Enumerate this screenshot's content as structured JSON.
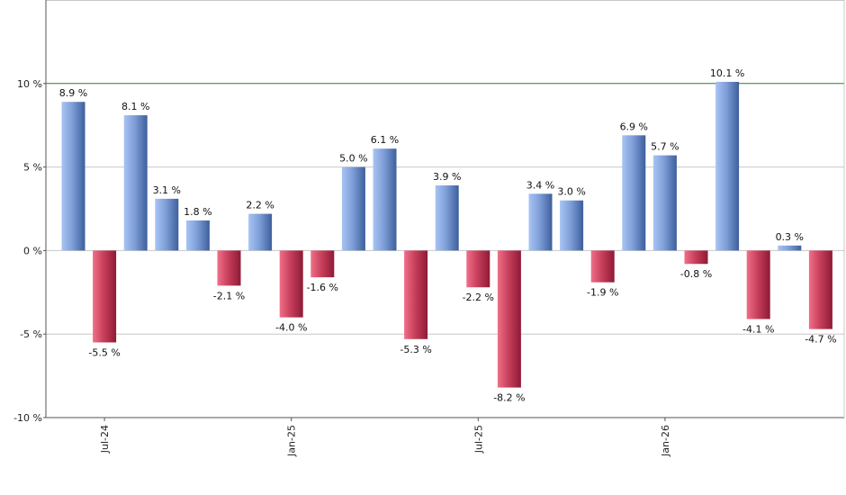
{
  "chart_data": {
    "type": "bar",
    "categories": [
      "2024-06",
      "2024-07",
      "2024-08",
      "2024-09",
      "2024-10",
      "2024-11",
      "2024-12",
      "2025-01",
      "2025-02",
      "2025-03",
      "2025-04",
      "2025-05",
      "2025-06",
      "2025-07",
      "2025-08",
      "2025-09",
      "2025-10",
      "2025-11",
      "2025-12",
      "2026-01",
      "2026-02",
      "2026-03",
      "2026-04",
      "2026-05",
      "2026-06"
    ],
    "values": [
      8.9,
      -5.5,
      8.1,
      3.1,
      1.8,
      -2.1,
      2.2,
      -4.0,
      -1.6,
      5.0,
      6.1,
      -5.3,
      3.9,
      -2.2,
      -8.2,
      3.4,
      3.0,
      -1.9,
      6.9,
      5.7,
      -0.8,
      10.1,
      -4.1,
      0.3,
      -4.7
    ],
    "data_labels": [
      "8.9 %",
      "-5.5 %",
      "8.1 %",
      "3.1 %",
      "1.8 %",
      "-2.1 %",
      "2.2 %",
      "-4.0 %",
      "-1.6 %",
      "5.0 %",
      "6.1 %",
      "-5.3 %",
      "3.9 %",
      "-2.2 %",
      "-8.2 %",
      "3.4 %",
      "3.0 %",
      "-1.9 %",
      "6.9 %",
      "5.7 %",
      "-0.8 %",
      "10.1 %",
      "-4.1 %",
      "0.3 %",
      "-4.7 %"
    ],
    "x_tick_labels": [
      {
        "label": "Jul-24",
        "category": "2024-07"
      },
      {
        "label": "Jan-25",
        "category": "2025-01"
      },
      {
        "label": "Jul-25",
        "category": "2025-07"
      },
      {
        "label": "Jan-26",
        "category": "2026-01"
      }
    ],
    "y_ticks": [
      10,
      5,
      0,
      -5,
      -10
    ],
    "y_tick_labels": [
      "10 %",
      "5 %",
      "0 %",
      "-5 %",
      "-10 %"
    ],
    "ylim": [
      -10,
      15
    ],
    "reference_line": 10,
    "grid": true,
    "title": "",
    "xlabel": "",
    "ylabel": "",
    "colors": {
      "positive_light": "#a8c4f4",
      "positive_dark": "#3d5f9c",
      "negative_light": "#f07088",
      "negative_dark": "#8e1a36",
      "grid": "#c8c8c8",
      "reference": "#2e7d32",
      "axis": "#555555"
    }
  }
}
